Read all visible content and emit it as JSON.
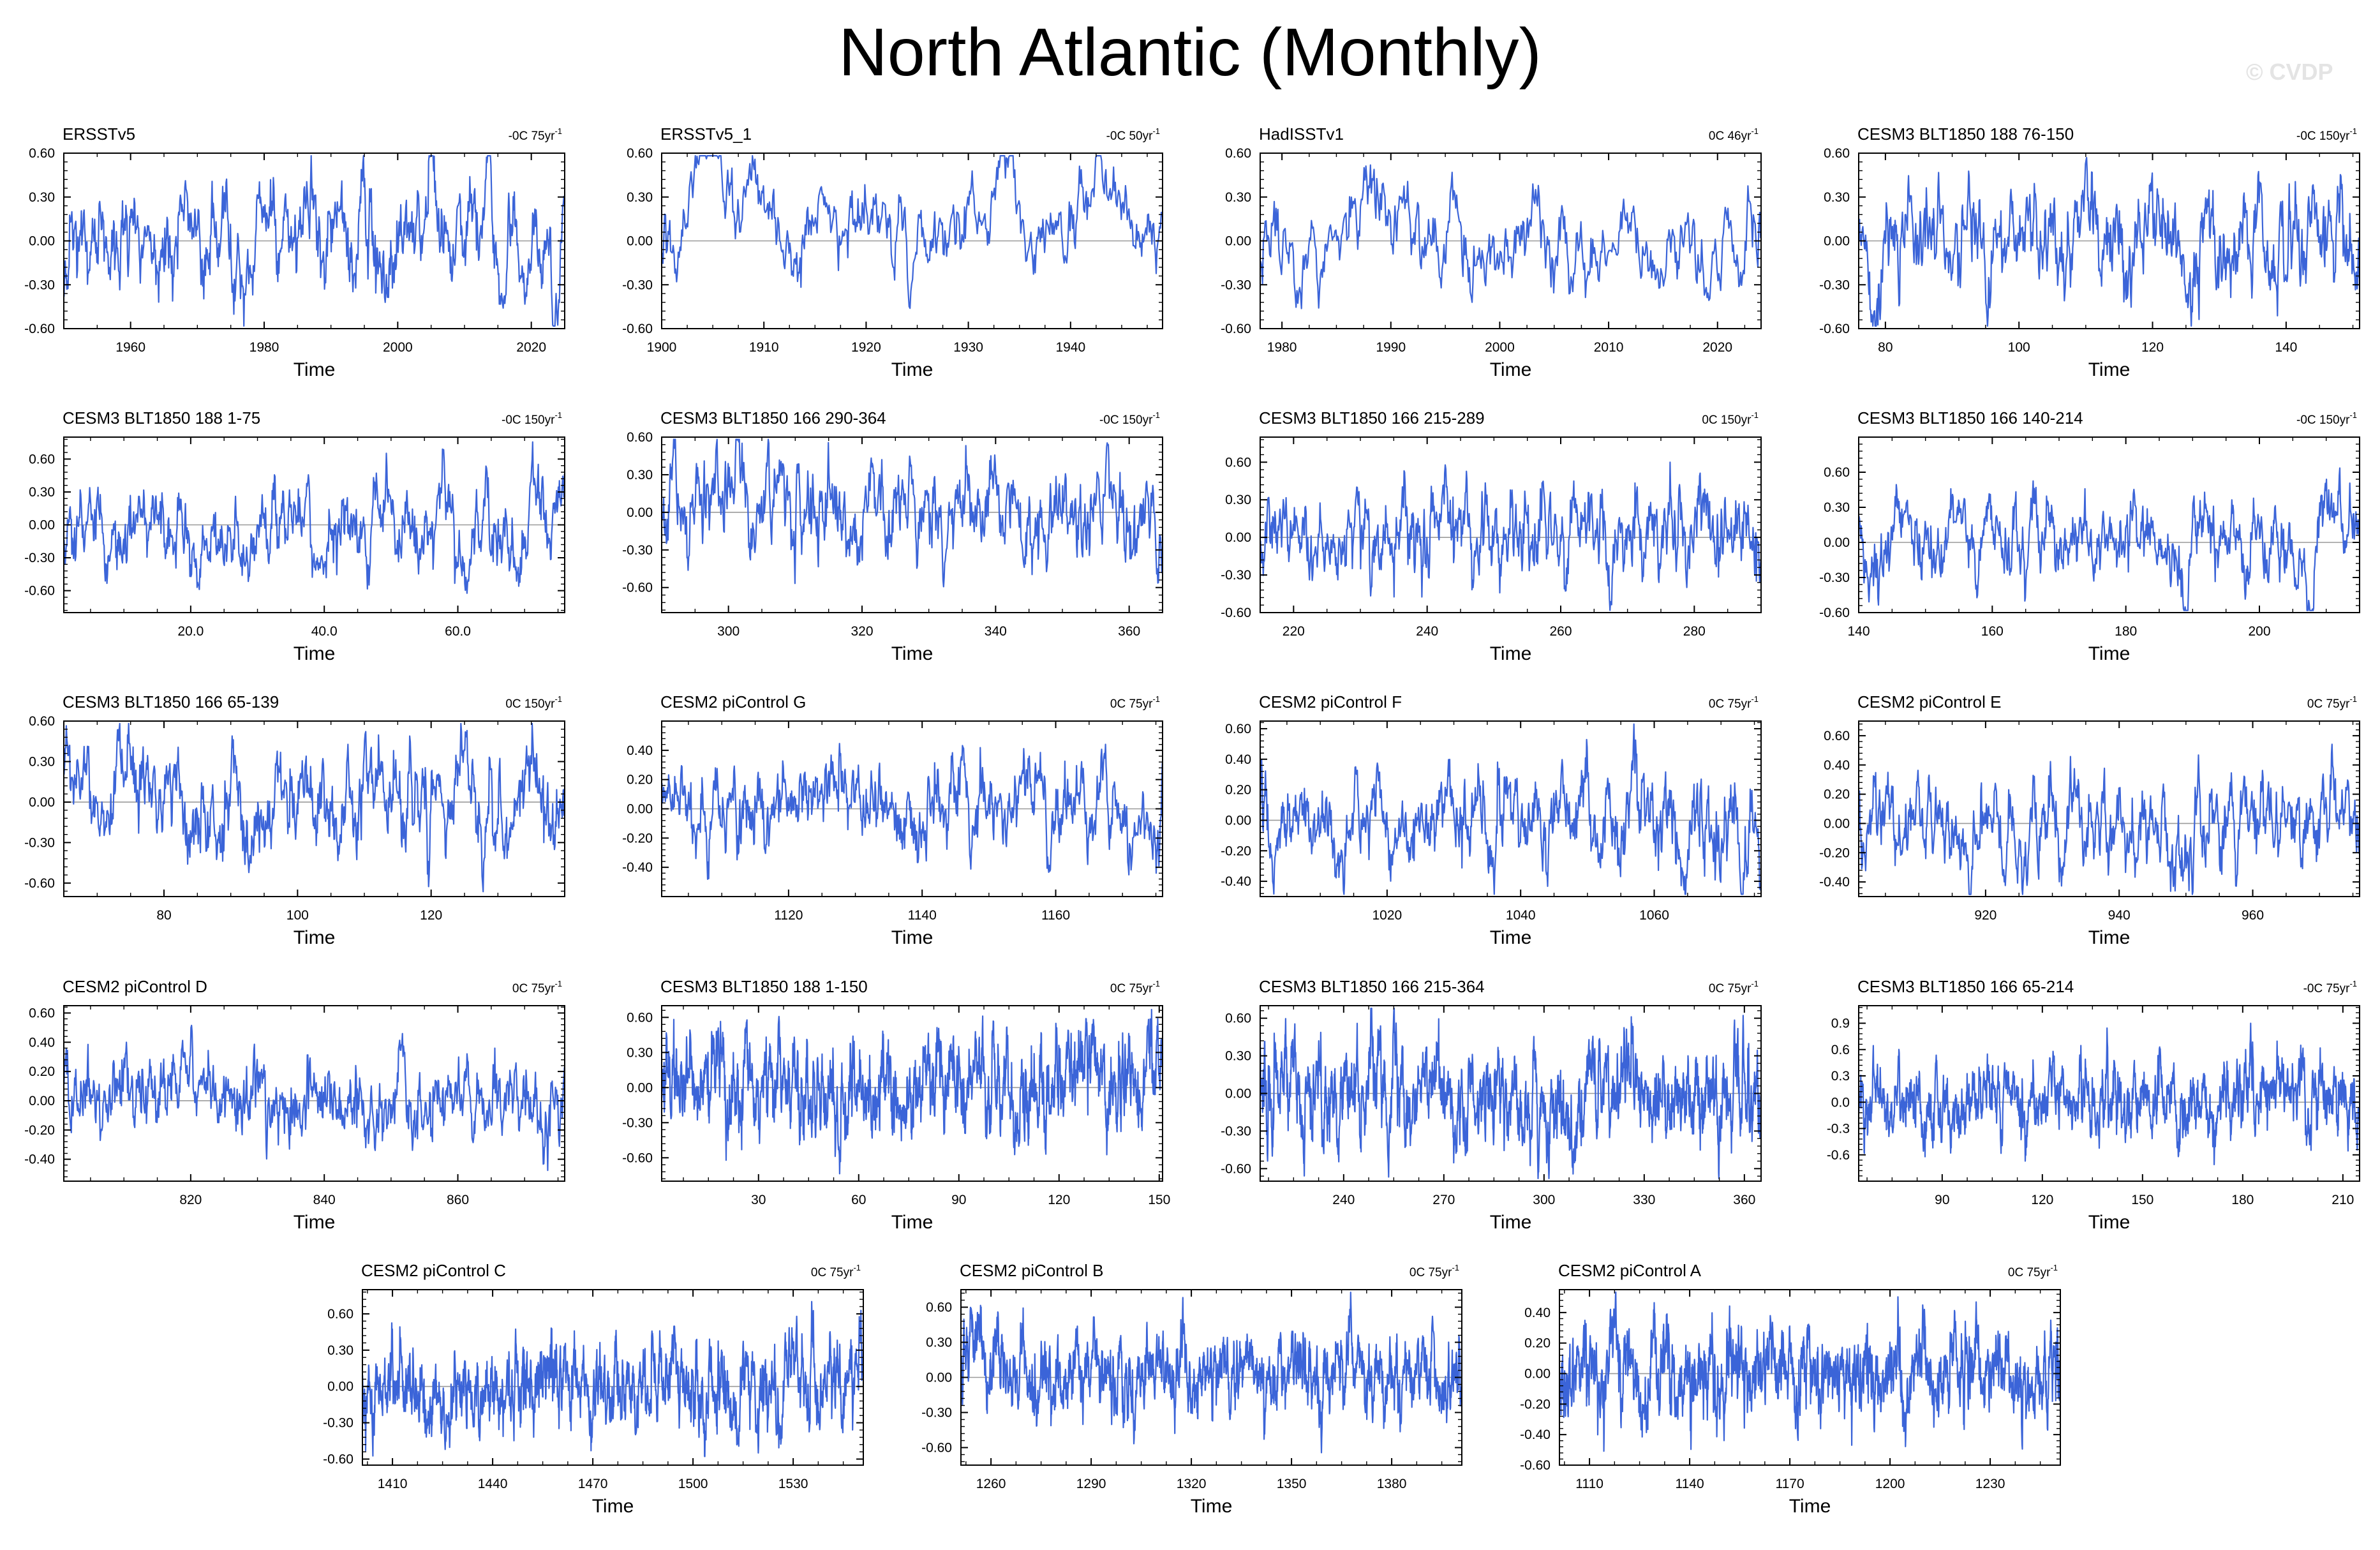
{
  "page": {
    "title": "North Atlantic (Monthly)",
    "watermark": "© CVDP"
  },
  "colors": {
    "series": "#3b64d8",
    "axis": "#000000",
    "zero_line": "#9a9a9a",
    "background": "#ffffff"
  },
  "chart_data": [
    {
      "type": "line",
      "title": "ERSSTv5",
      "trend_value": "-0C",
      "trend_period": "75yr",
      "trend_exp": "-1",
      "xlabel": "Time",
      "xlim": [
        1950,
        2025
      ],
      "xticks": [
        1960,
        1980,
        2000,
        2020
      ],
      "xtick_labels": [
        "1960",
        "1980",
        "2000",
        "2020"
      ],
      "ylim": [
        -0.6,
        0.6
      ],
      "yticks": [
        -0.6,
        -0.3,
        0,
        0.3,
        0.6
      ],
      "ytick_labels": [
        "-0.60",
        "-0.30",
        "0.00",
        "0.30",
        "0.60"
      ],
      "series": {
        "name": "ERSSTv5",
        "seed": 11,
        "amplitude": 0.22,
        "persistence": 0.9,
        "trend": -0.02
      }
    },
    {
      "type": "line",
      "title": "ERSSTv5_1",
      "trend_value": "-0C",
      "trend_period": "50yr",
      "trend_exp": "-1",
      "xlabel": "Time",
      "xlim": [
        1900,
        1949
      ],
      "xticks": [
        1900,
        1910,
        1920,
        1930,
        1940
      ],
      "xtick_labels": [
        "1900",
        "1910",
        "1920",
        "1930",
        "1940"
      ],
      "ylim": [
        -0.6,
        0.6
      ],
      "yticks": [
        -0.6,
        -0.3,
        0,
        0.3,
        0.6
      ],
      "ytick_labels": [
        "-0.60",
        "-0.30",
        "0.00",
        "0.30",
        "0.60"
      ],
      "series": {
        "name": "ERSSTv5_1",
        "seed": 23,
        "amplitude": 0.24,
        "persistence": 0.95,
        "trend": -0.05
      }
    },
    {
      "type": "line",
      "title": "HadISSTv1",
      "trend_value": "0C",
      "trend_period": "46yr",
      "trend_exp": "-1",
      "xlabel": "Time",
      "xlim": [
        1978,
        2024
      ],
      "xticks": [
        1980,
        1990,
        2000,
        2010,
        2020
      ],
      "xtick_labels": [
        "1980",
        "1990",
        "2000",
        "2010",
        "2020"
      ],
      "ylim": [
        -0.6,
        0.6
      ],
      "yticks": [
        -0.6,
        -0.3,
        0,
        0.3,
        0.6
      ],
      "ytick_labels": [
        "-0.60",
        "-0.30",
        "0.00",
        "0.30",
        "0.60"
      ],
      "series": {
        "name": "HadISSTv1",
        "seed": 37,
        "amplitude": 0.2,
        "persistence": 0.9,
        "trend": 0.03
      }
    },
    {
      "type": "line",
      "title": "CESM3 BLT1850 188 76-150",
      "trend_value": "-0C",
      "trend_period": "150yr",
      "trend_exp": "-1",
      "xlabel": "Time",
      "xlim": [
        76,
        151
      ],
      "xticks": [
        80,
        100,
        120,
        140
      ],
      "xtick_labels": [
        "80",
        "100",
        "120",
        "140"
      ],
      "ylim": [
        -0.6,
        0.6
      ],
      "yticks": [
        -0.6,
        -0.3,
        0,
        0.3,
        0.6
      ],
      "ytick_labels": [
        "-0.60",
        "-0.30",
        "0.00",
        "0.30",
        "0.60"
      ],
      "series": {
        "name": "CESM3 BLT1850 188 76-150",
        "seed": 41,
        "amplitude": 0.2,
        "persistence": 0.85,
        "trend": 0
      }
    },
    {
      "type": "line",
      "title": "CESM3 BLT1850 188 1-75",
      "trend_value": "-0C",
      "trend_period": "150yr",
      "trend_exp": "-1",
      "xlabel": "Time",
      "xlim": [
        1,
        76
      ],
      "xticks": [
        20,
        40,
        60
      ],
      "xtick_labels": [
        "20.0",
        "40.0",
        "60.0"
      ],
      "ylim": [
        -0.8,
        0.8
      ],
      "yticks": [
        -0.6,
        -0.3,
        0,
        0.3,
        0.6
      ],
      "ytick_labels": [
        "-0.60",
        "-0.30",
        "0.00",
        "0.30",
        "0.60"
      ],
      "series": {
        "name": "CESM3 BLT1850 188 1-75",
        "seed": 53,
        "amplitude": 0.25,
        "persistence": 0.88,
        "trend": 0
      }
    },
    {
      "type": "line",
      "title": "CESM3 BLT1850 166 290-364",
      "trend_value": "-0C",
      "trend_period": "150yr",
      "trend_exp": "-1",
      "xlabel": "Time",
      "xlim": [
        290,
        365
      ],
      "xticks": [
        300,
        320,
        340,
        360
      ],
      "xtick_labels": [
        "300",
        "320",
        "340",
        "360"
      ],
      "ylim": [
        -0.8,
        0.6
      ],
      "yticks": [
        -0.6,
        -0.3,
        0,
        0.3,
        0.6
      ],
      "ytick_labels": [
        "-0.60",
        "-0.30",
        "0.00",
        "0.30",
        "0.60"
      ],
      "series": {
        "name": "CESM3 BLT1850 166 290-364",
        "seed": 67,
        "amplitude": 0.22,
        "persistence": 0.85,
        "trend": 0
      }
    },
    {
      "type": "line",
      "title": "CESM3 BLT1850 166 215-289",
      "trend_value": "0C",
      "trend_period": "150yr",
      "trend_exp": "-1",
      "xlabel": "Time",
      "xlim": [
        215,
        290
      ],
      "xticks": [
        220,
        240,
        260,
        280
      ],
      "xtick_labels": [
        "220",
        "240",
        "260",
        "280"
      ],
      "ylim": [
        -0.6,
        0.8
      ],
      "yticks": [
        -0.6,
        -0.3,
        0,
        0.3,
        0.6
      ],
      "ytick_labels": [
        "-0.60",
        "-0.30",
        "0.00",
        "0.30",
        "0.60"
      ],
      "series": {
        "name": "CESM3 BLT1850 166 215-289",
        "seed": 71,
        "amplitude": 0.22,
        "persistence": 0.85,
        "trend": 0
      }
    },
    {
      "type": "line",
      "title": "CESM3 BLT1850 166 140-214",
      "trend_value": "-0C",
      "trend_period": "150yr",
      "trend_exp": "-1",
      "xlabel": "Time",
      "xlim": [
        140,
        215
      ],
      "xticks": [
        140,
        160,
        180,
        200
      ],
      "xtick_labels": [
        "140",
        "160",
        "180",
        "200"
      ],
      "ylim": [
        -0.6,
        0.9
      ],
      "yticks": [
        -0.6,
        -0.3,
        0,
        0.3,
        0.6
      ],
      "ytick_labels": [
        "-0.60",
        "-0.30",
        "0.00",
        "0.30",
        "0.60"
      ],
      "series": {
        "name": "CESM3 BLT1850 166 140-214",
        "seed": 83,
        "amplitude": 0.22,
        "persistence": 0.88,
        "trend": 0
      }
    },
    {
      "type": "line",
      "title": "CESM3 BLT1850 166 65-139",
      "trend_value": "0C",
      "trend_period": "150yr",
      "trend_exp": "-1",
      "xlabel": "Time",
      "xlim": [
        65,
        140
      ],
      "xticks": [
        80,
        100,
        120
      ],
      "xtick_labels": [
        "80",
        "100",
        "120"
      ],
      "ylim": [
        -0.7,
        0.6
      ],
      "yticks": [
        -0.6,
        -0.3,
        0,
        0.3,
        0.6
      ],
      "ytick_labels": [
        "-0.60",
        "-0.30",
        "0.00",
        "0.30",
        "0.60"
      ],
      "series": {
        "name": "CESM3 BLT1850 166 65-139",
        "seed": 97,
        "amplitude": 0.22,
        "persistence": 0.85,
        "trend": 0
      }
    },
    {
      "type": "line",
      "title": "CESM2 piControl G",
      "trend_value": "0C",
      "trend_period": "75yr",
      "trend_exp": "-1",
      "xlabel": "Time",
      "xlim": [
        1101,
        1176
      ],
      "xticks": [
        1120,
        1140,
        1160
      ],
      "xtick_labels": [
        "1120",
        "1140",
        "1160"
      ],
      "ylim": [
        -0.6,
        0.6
      ],
      "yticks": [
        -0.4,
        -0.2,
        0,
        0.2,
        0.4
      ],
      "ytick_labels": [
        "-0.40",
        "-0.20",
        "0.00",
        "0.20",
        "0.40"
      ],
      "series": {
        "name": "CESM2 piControl G",
        "seed": 101,
        "amplitude": 0.18,
        "persistence": 0.88,
        "trend": 0
      }
    },
    {
      "type": "line",
      "title": "CESM2 piControl F",
      "trend_value": "0C",
      "trend_period": "75yr",
      "trend_exp": "-1",
      "xlabel": "Time",
      "xlim": [
        1001,
        1076
      ],
      "xticks": [
        1020,
        1040,
        1060
      ],
      "xtick_labels": [
        "1020",
        "1040",
        "1060"
      ],
      "ylim": [
        -0.5,
        0.65
      ],
      "yticks": [
        -0.4,
        -0.2,
        0,
        0.2,
        0.4,
        0.6
      ],
      "ytick_labels": [
        "-0.40",
        "-0.20",
        "0.00",
        "0.20",
        "0.40",
        "0.60"
      ],
      "series": {
        "name": "CESM2 piControl F",
        "seed": 113,
        "amplitude": 0.17,
        "persistence": 0.85,
        "trend": 0
      }
    },
    {
      "type": "line",
      "title": "CESM2 piControl E",
      "trend_value": "0C",
      "trend_period": "75yr",
      "trend_exp": "-1",
      "xlabel": "Time",
      "xlim": [
        901,
        976
      ],
      "xticks": [
        920,
        940,
        960
      ],
      "xtick_labels": [
        "920",
        "940",
        "960"
      ],
      "ylim": [
        -0.5,
        0.7
      ],
      "yticks": [
        -0.4,
        -0.2,
        0,
        0.2,
        0.4,
        0.6
      ],
      "ytick_labels": [
        "-0.40",
        "-0.20",
        "0.00",
        "0.20",
        "0.40",
        "0.60"
      ],
      "series": {
        "name": "CESM2 piControl E",
        "seed": 127,
        "amplitude": 0.17,
        "persistence": 0.85,
        "trend": 0
      }
    },
    {
      "type": "line",
      "title": "CESM2 piControl D",
      "trend_value": "0C",
      "trend_period": "75yr",
      "trend_exp": "-1",
      "xlabel": "Time",
      "xlim": [
        801,
        876
      ],
      "xticks": [
        820,
        840,
        860
      ],
      "xtick_labels": [
        "820",
        "840",
        "860"
      ],
      "ylim": [
        -0.55,
        0.65
      ],
      "yticks": [
        -0.4,
        -0.2,
        0,
        0.2,
        0.4,
        0.6
      ],
      "ytick_labels": [
        "-0.40",
        "-0.20",
        "0.00",
        "0.20",
        "0.40",
        "0.60"
      ],
      "series": {
        "name": "CESM2 piControl D",
        "seed": 131,
        "amplitude": 0.17,
        "persistence": 0.85,
        "trend": 0
      }
    },
    {
      "type": "line",
      "title": "CESM3 BLT1850 188 1-150",
      "trend_value": "0C",
      "trend_period": "75yr",
      "trend_exp": "-1",
      "xlabel": "Time",
      "xlim": [
        1,
        151
      ],
      "xticks": [
        30,
        60,
        90,
        120,
        150
      ],
      "xtick_labels": [
        "30",
        "60",
        "90",
        "120",
        "150"
      ],
      "ylim": [
        -0.8,
        0.7
      ],
      "yticks": [
        -0.6,
        -0.3,
        0,
        0.3,
        0.6
      ],
      "ytick_labels": [
        "-0.60",
        "-0.30",
        "0.00",
        "0.30",
        "0.60"
      ],
      "series": {
        "name": "CESM3 BLT1850 188 1-150",
        "seed": 149,
        "amplitude": 0.24,
        "persistence": 0.85,
        "trend": 0
      }
    },
    {
      "type": "line",
      "title": "CESM3 BLT1850 166 215-364",
      "trend_value": "0C",
      "trend_period": "75yr",
      "trend_exp": "-1",
      "xlabel": "Time",
      "xlim": [
        215,
        365
      ],
      "xticks": [
        240,
        270,
        300,
        330,
        360
      ],
      "xtick_labels": [
        "240",
        "270",
        "300",
        "330",
        "360"
      ],
      "ylim": [
        -0.7,
        0.7
      ],
      "yticks": [
        -0.6,
        -0.3,
        0,
        0.3,
        0.6
      ],
      "ytick_labels": [
        "-0.60",
        "-0.30",
        "0.00",
        "0.30",
        "0.60"
      ],
      "series": {
        "name": "CESM3 BLT1850 166 215-364",
        "seed": 157,
        "amplitude": 0.22,
        "persistence": 0.85,
        "trend": 0
      }
    },
    {
      "type": "line",
      "title": "CESM3 BLT1850 166 65-214",
      "trend_value": "-0C",
      "trend_period": "75yr",
      "trend_exp": "-1",
      "xlabel": "Time",
      "xlim": [
        65,
        215
      ],
      "xticks": [
        90,
        120,
        150,
        180,
        210
      ],
      "xtick_labels": [
        "90",
        "120",
        "150",
        "180",
        "210"
      ],
      "ylim": [
        -0.9,
        1.1
      ],
      "yticks": [
        -0.6,
        -0.3,
        0,
        0.3,
        0.6,
        0.9
      ],
      "ytick_labels": [
        "-0.6",
        "-0.3",
        "0.0",
        "0.3",
        "0.6",
        "0.9"
      ],
      "series": {
        "name": "CESM3 BLT1850 166 65-214",
        "seed": 163,
        "amplitude": 0.25,
        "persistence": 0.86,
        "trend": 0
      }
    },
    {
      "type": "line",
      "title": "CESM2 piControl C",
      "trend_value": "0C",
      "trend_period": "75yr",
      "trend_exp": "-1",
      "xlabel": "Time",
      "xlim": [
        1401,
        1551
      ],
      "xticks": [
        1410,
        1440,
        1470,
        1500,
        1530
      ],
      "xtick_labels": [
        "1410",
        "1440",
        "1470",
        "1500",
        "1530"
      ],
      "ylim": [
        -0.65,
        0.8
      ],
      "yticks": [
        -0.6,
        -0.3,
        0,
        0.3,
        0.6
      ],
      "ytick_labels": [
        "-0.60",
        "-0.30",
        "0.00",
        "0.30",
        "0.60"
      ],
      "series": {
        "name": "CESM2 piControl C",
        "seed": 173,
        "amplitude": 0.2,
        "persistence": 0.85,
        "trend": 0
      }
    },
    {
      "type": "line",
      "title": "CESM2 piControl B",
      "trend_value": "0C",
      "trend_period": "75yr",
      "trend_exp": "-1",
      "xlabel": "Time",
      "xlim": [
        1251,
        1401
      ],
      "xticks": [
        1260,
        1290,
        1320,
        1350,
        1380
      ],
      "xtick_labels": [
        "1260",
        "1290",
        "1320",
        "1350",
        "1380"
      ],
      "ylim": [
        -0.75,
        0.75
      ],
      "yticks": [
        -0.6,
        -0.3,
        0,
        0.3,
        0.6
      ],
      "ytick_labels": [
        "-0.60",
        "-0.30",
        "0.00",
        "0.30",
        "0.60"
      ],
      "series": {
        "name": "CESM2 piControl B",
        "seed": 181,
        "amplitude": 0.2,
        "persistence": 0.85,
        "trend": 0
      }
    },
    {
      "type": "line",
      "title": "CESM2 piControl A",
      "trend_value": "0C",
      "trend_period": "75yr",
      "trend_exp": "-1",
      "xlabel": "Time",
      "xlim": [
        1101,
        1251
      ],
      "xticks": [
        1110,
        1140,
        1170,
        1200,
        1230
      ],
      "xtick_labels": [
        "1110",
        "1140",
        "1170",
        "1200",
        "1230"
      ],
      "ylim": [
        -0.6,
        0.55
      ],
      "yticks": [
        -0.6,
        -0.4,
        -0.2,
        0,
        0.2,
        0.4
      ],
      "ytick_labels": [
        "-0.60",
        "-0.40",
        "-0.20",
        "0.00",
        "0.20",
        "0.40"
      ],
      "series": {
        "name": "CESM2 piControl A",
        "seed": 191,
        "amplitude": 0.17,
        "persistence": 0.85,
        "trend": 0
      }
    }
  ]
}
